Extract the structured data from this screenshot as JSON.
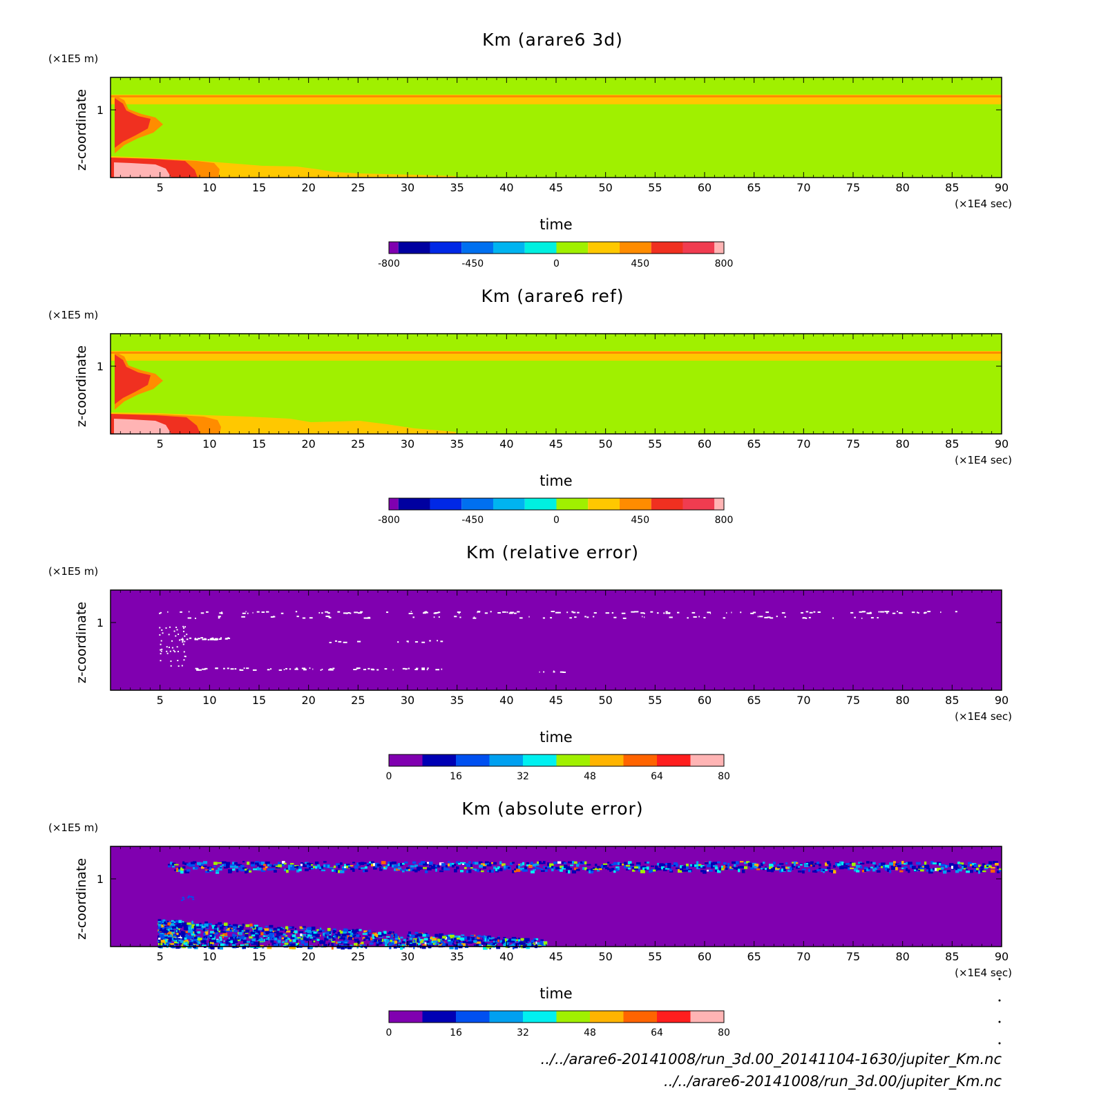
{
  "colors": {
    "background": "#ffffff",
    "frame": "#000000",
    "scale10": [
      "#8000b0",
      "#0000a0",
      "#0028e6",
      "#0070f0",
      "#00b4f0",
      "#00f0e0",
      "#a0f000",
      "#ffc800",
      "#ff8c00",
      "#f03020",
      "#f03c50",
      "#ffb4b4"
    ],
    "scale_err": [
      "#8000b0",
      "#0000b4",
      "#0050f0",
      "#00a0f0",
      "#00f0f0",
      "#a0f000",
      "#ffb400",
      "#ff6400",
      "#ff1e1e",
      "#ffb4b4"
    ]
  },
  "chart_data": [
    {
      "type": "heatmap",
      "title": "Km (arare6 3d)",
      "xlabel": "time",
      "x_unit": "(×1E4 sec)",
      "ylabel": "z-coordinate",
      "y_unit": "(×1E5 m)",
      "xlim": [
        0,
        90
      ],
      "xticks": [
        5,
        10,
        15,
        20,
        25,
        30,
        35,
        40,
        45,
        50,
        55,
        60,
        65,
        70,
        75,
        80,
        85,
        90
      ],
      "yticks": [
        1
      ],
      "colorbar": {
        "ticks": [
          "-800",
          "-450",
          "0",
          "450",
          "800"
        ],
        "levels": 11,
        "scale": "scale10"
      },
      "field": {
        "background_value": 100,
        "top_band_value": 300,
        "upper_plume_value": 600,
        "lower_layer_value": 500,
        "near_surface_value": 750
      }
    },
    {
      "type": "heatmap",
      "title": "Km (arare6 ref)",
      "xlabel": "time",
      "x_unit": "(×1E4 sec)",
      "ylabel": "z-coordinate",
      "y_unit": "(×1E5 m)",
      "xlim": [
        0,
        90
      ],
      "xticks": [
        5,
        10,
        15,
        20,
        25,
        30,
        35,
        40,
        45,
        50,
        55,
        60,
        65,
        70,
        75,
        80,
        85,
        90
      ],
      "yticks": [
        1
      ],
      "colorbar": {
        "ticks": [
          "-800",
          "-450",
          "0",
          "450",
          "800"
        ],
        "levels": 11,
        "scale": "scale10"
      },
      "field": {
        "background_value": 100,
        "top_band_value": 300,
        "upper_plume_value": 600,
        "lower_layer_value": 500,
        "near_surface_value": 750
      }
    },
    {
      "type": "heatmap",
      "title": "Km (relative error)",
      "xlabel": "time",
      "x_unit": "(×1E4 sec)",
      "ylabel": "z-coordinate",
      "y_unit": "(×1E5 m)",
      "xlim": [
        0,
        90
      ],
      "xticks": [
        5,
        10,
        15,
        20,
        25,
        30,
        35,
        40,
        45,
        50,
        55,
        60,
        65,
        70,
        75,
        80,
        85,
        90
      ],
      "yticks": [
        1
      ],
      "colorbar": {
        "ticks": [
          "0",
          "16",
          "32",
          "48",
          "64",
          "80"
        ],
        "levels": 10,
        "scale": "scale_err"
      },
      "field": {
        "background_value": 0
      }
    },
    {
      "type": "heatmap",
      "title": "Km (absolute error)",
      "xlabel": "time",
      "x_unit": "(×1E4 sec)",
      "ylabel": "z-coordinate",
      "y_unit": "(×1E5 m)",
      "xlim": [
        0,
        90
      ],
      "xticks": [
        5,
        10,
        15,
        20,
        25,
        30,
        35,
        40,
        45,
        50,
        55,
        60,
        65,
        70,
        75,
        80,
        85,
        90
      ],
      "yticks": [
        1
      ],
      "colorbar": {
        "ticks": [
          "0",
          "16",
          "32",
          "48",
          "64",
          "80"
        ],
        "levels": 10,
        "scale": "scale_err"
      },
      "field": {
        "background_value": 0
      }
    }
  ],
  "footer": {
    "line1": "../../arare6-20141008/run_3d.00_20141104-1630/jupiter_Km.nc",
    "line2": "../../arare6-20141008/run_3d.00/jupiter_Km.nc"
  }
}
